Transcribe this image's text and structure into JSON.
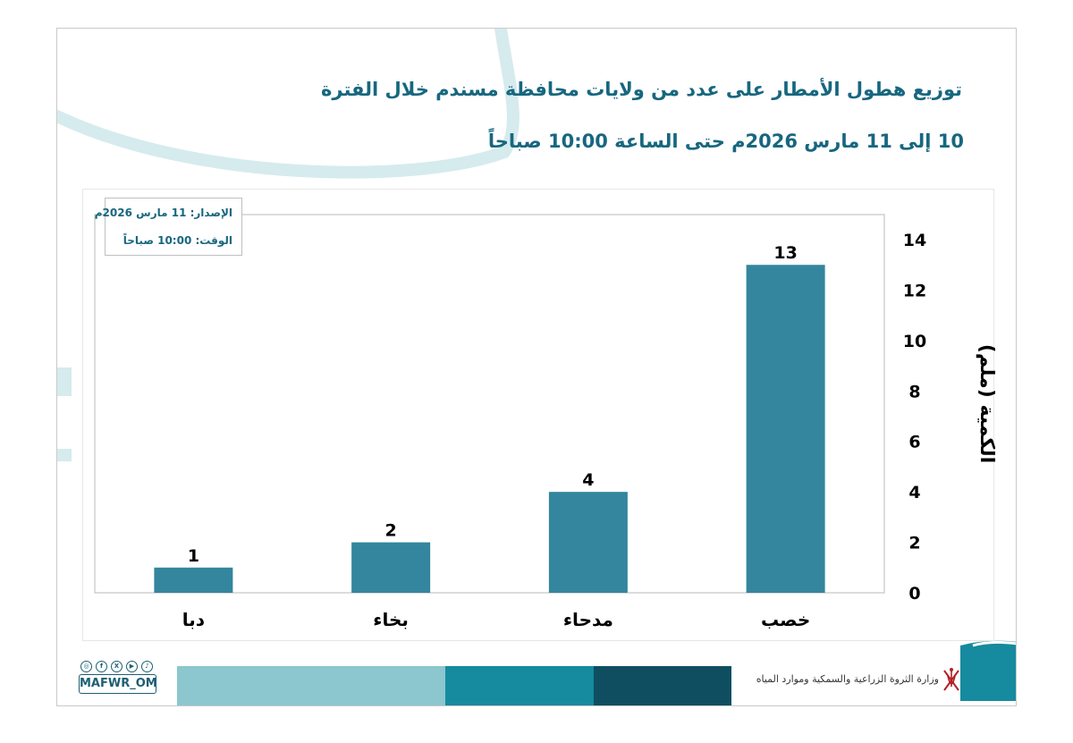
{
  "header": {
    "title_line1": "توزيع هطول الأمطار على عدد من ولايات محافظة مسندم خلال الفترة",
    "title_line2": "10 إلى 11 مارس  2026م حتى الساعة 10:00 صباحاً"
  },
  "issue_box": {
    "date_line": "الإصدار: 11 مارس 2026م",
    "time_line": "الوقت: 10:00  صباحاً"
  },
  "chart_data": {
    "type": "bar",
    "categories": [
      "دبا",
      "بخاء",
      "مدحاء",
      "خصب"
    ],
    "values": [
      1,
      2,
      4,
      13
    ],
    "data_labels": [
      "1",
      "2",
      "4",
      "13"
    ],
    "ylabel": "الكمية (ملم)",
    "ylim": [
      0,
      14
    ],
    "yticks": [
      0,
      2,
      4,
      6,
      8,
      10,
      12,
      14
    ],
    "y_axis_position": "right",
    "grid": false,
    "legend": "none",
    "bar_color": "#33869d"
  },
  "footer": {
    "ministry": "وزارة الثروة الزراعية والسمكية وموارد المياه",
    "handle": "MAFWR_OM",
    "social_icons": [
      "instagram-icon",
      "facebook-icon",
      "x-icon",
      "youtube-icon",
      "tiktok-icon"
    ]
  },
  "colors": {
    "title": "#17677f",
    "accent_light": "#8cc6ce",
    "accent_mid": "#168a9e",
    "accent_dark": "#0f4e60",
    "decor": "#d6ebee"
  }
}
